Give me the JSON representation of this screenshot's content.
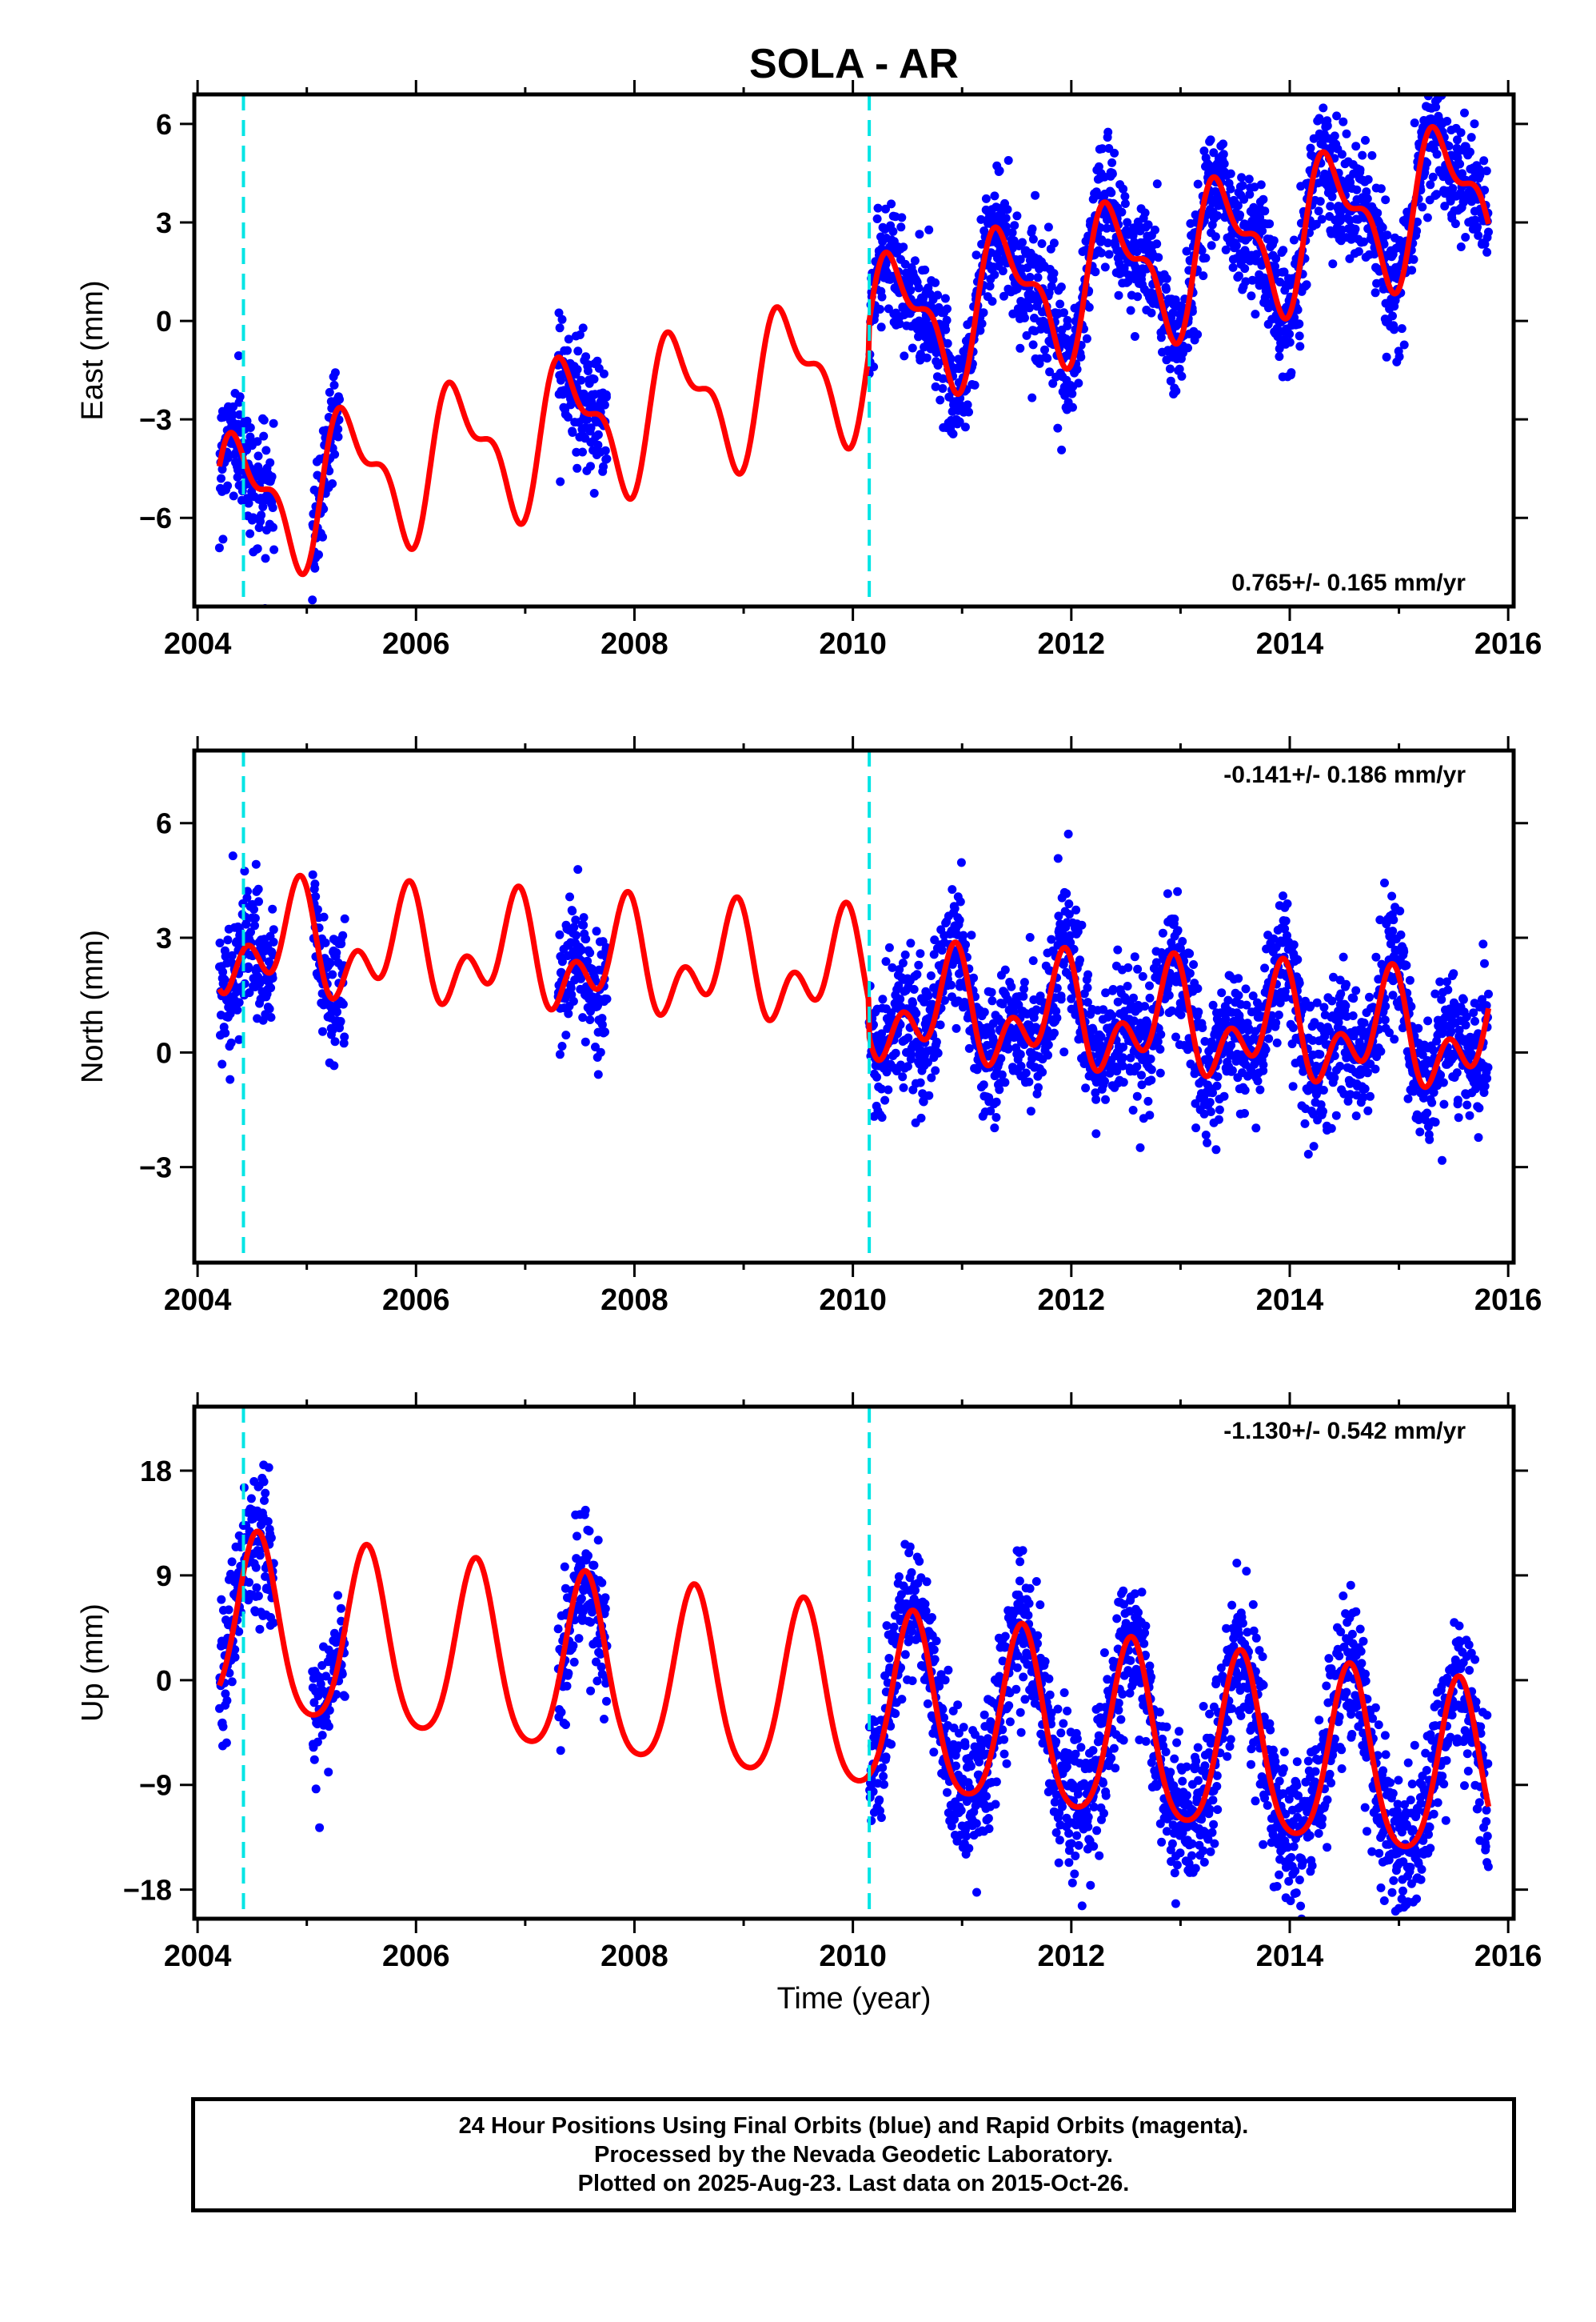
{
  "title": "SOLA - AR",
  "colors": {
    "points": "#0000ff",
    "fit": "#ff0000",
    "event_lines": "#00e5e5",
    "frame": "#000000"
  },
  "x_axis": {
    "label": "Time (year)",
    "ticks": [
      2004,
      2006,
      2008,
      2010,
      2012,
      2014,
      2016
    ],
    "range": [
      2003.97,
      2016.05
    ]
  },
  "event_lines": [
    2004.42,
    2010.15
  ],
  "footer": {
    "line1": "24 Hour Positions Using Final Orbits (blue) and Rapid Orbits (magenta).",
    "line2": "Processed by the Nevada Geodetic Laboratory.",
    "line3": "Plotted on 2025-Aug-23. Last data on 2015-Oct-26."
  },
  "chart_data": [
    {
      "type": "scatter",
      "name": "East",
      "ylabel": "East (mm)",
      "ylim": [
        -8.7,
        6.9
      ],
      "yticks": [
        -6,
        -3,
        0,
        3,
        6
      ],
      "ytick_labels": [
        "−6",
        "−3",
        "0",
        "3",
        "6"
      ],
      "velocity_label": "0.765+/- 0.165 mm/yr",
      "data_segments": [
        [
          2004.2,
          2004.7
        ],
        [
          2005.05,
          2005.3
        ],
        [
          2007.3,
          2007.75
        ],
        [
          2010.15,
          2015.82
        ]
      ],
      "fit": {
        "trend_mm_per_yr": 0.765,
        "offset_2004": -5.9,
        "offset_2010_jump": 0.9,
        "annual_amp": 1.9,
        "annual_peak": 2004.4,
        "semiannual_amp": 0.9,
        "semiannual_peak": 2004.25,
        "noise_mm": 0.9
      }
    },
    {
      "type": "scatter",
      "name": "North",
      "ylabel": "North (mm)",
      "ylim": [
        -5.5,
        7.9
      ],
      "yticks": [
        -3,
        0,
        3,
        6
      ],
      "ytick_labels": [
        "−3",
        "0",
        "3",
        "6"
      ],
      "velocity_label": "-0.141+/- 0.186 mm/yr",
      "data_segments": [
        [
          2004.2,
          2004.7
        ],
        [
          2005.05,
          2005.35
        ],
        [
          2007.3,
          2007.75
        ],
        [
          2010.15,
          2015.82
        ]
      ],
      "fit": {
        "trend_mm_per_yr": -0.141,
        "offset_2004": 2.9,
        "offset_2010_jump": -0.9,
        "annual_amp": 1.0,
        "annual_peak": 2004.9,
        "semiannual_amp": 0.9,
        "semiannual_peak": 2004.45,
        "noise_mm": 0.85
      }
    },
    {
      "type": "scatter",
      "name": "Up",
      "ylabel": "Up (mm)",
      "ylim": [
        -20.5,
        23.5
      ],
      "yticks": [
        -18,
        -9,
        0,
        9,
        18
      ],
      "ytick_labels": [
        "−18",
        "−9",
        "0",
        "9",
        "18"
      ],
      "velocity_label": "-1.130+/- 0.542 mm/yr",
      "data_segments": [
        [
          2004.2,
          2004.7
        ],
        [
          2005.05,
          2005.35
        ],
        [
          2007.3,
          2007.75
        ],
        [
          2010.15,
          2015.82
        ]
      ],
      "fit": {
        "trend_mm_per_yr": -1.13,
        "offset_2004": 4.6,
        "offset_2010_jump": 0.0,
        "annual_amp": 7.6,
        "annual_peak": 2004.55,
        "semiannual_amp": 1.2,
        "semiannual_peak": 2004.55,
        "noise_mm": 3.0
      }
    }
  ]
}
